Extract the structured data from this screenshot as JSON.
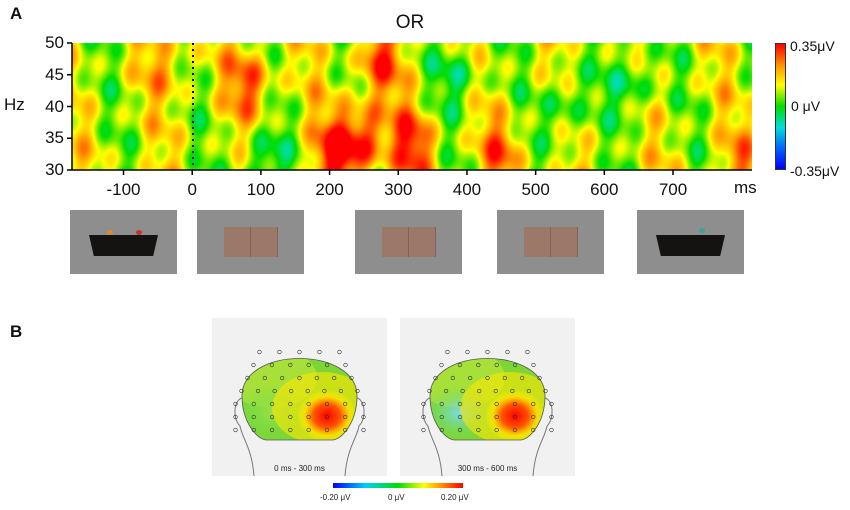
{
  "panels": {
    "a": "A",
    "b": "B"
  },
  "chart_data": [
    {
      "type": "heatmap",
      "title": "OR",
      "ylabel": "Hz",
      "xlabel": "ms",
      "xlim": [
        -175,
        815
      ],
      "ylim": [
        30,
        50
      ],
      "x_ticks": [
        "-100",
        "0",
        "100",
        "200",
        "300",
        "400",
        "500",
        "600",
        "700"
      ],
      "x_tick_values": [
        -100,
        0,
        100,
        200,
        300,
        400,
        500,
        600,
        700
      ],
      "y_ticks": [
        "30",
        "35",
        "40",
        "45",
        "50"
      ],
      "y_tick_values": [
        30,
        35,
        40,
        45,
        50
      ],
      "stimulus_onset_ms": 0,
      "colorbar": {
        "min": -0.35,
        "max": 0.35,
        "labels": [
          "0.35μV",
          "0 μV",
          "-0.35μV"
        ]
      },
      "hotspots": [
        {
          "x": 250,
          "y": 35,
          "value": 0.34
        },
        {
          "x": 210,
          "y": 33,
          "value": 0.33
        },
        {
          "x": 320,
          "y": 34,
          "value": 0.3
        },
        {
          "x": 85,
          "y": 44,
          "value": 0.28
        },
        {
          "x": 270,
          "y": 47,
          "value": 0.28
        },
        {
          "x": 450,
          "y": 33,
          "value": 0.24
        },
        {
          "x": -35,
          "y": 47,
          "value": 0.2
        },
        {
          "x": 800,
          "y": 31,
          "value": 0.2
        },
        {
          "x": 100,
          "y": 31,
          "value": -0.05
        },
        {
          "x": 640,
          "y": 44,
          "value": -0.05
        },
        {
          "x": 540,
          "y": 40,
          "value": -0.04
        },
        {
          "x": 390,
          "y": 45,
          "value": -0.03
        }
      ]
    },
    {
      "type": "heatmap",
      "subtype": "topographic",
      "maps": [
        {
          "window": "0 ms - 300 ms",
          "peak": {
            "region": "right-posterior",
            "value": 0.2
          },
          "low": {
            "region": "left",
            "value": 0.0
          }
        },
        {
          "window": "300 ms - 600 ms",
          "peak": {
            "region": "right-posterior",
            "value": 0.2
          },
          "low": {
            "region": "left",
            "value": -0.1
          }
        }
      ],
      "colorbar": {
        "min": -0.2,
        "max": 0.2,
        "labels": [
          "-0.20 μV",
          "0 μV",
          "0.20 μV"
        ]
      }
    }
  ],
  "stimuli": [
    {
      "kind": "tray-with-toys"
    },
    {
      "kind": "occluder"
    },
    {
      "kind": "occluder"
    },
    {
      "kind": "occluder"
    },
    {
      "kind": "tray-with-toy"
    }
  ],
  "colors": {
    "high": "#ff0000",
    "mid": "#00dd00",
    "low": "#0000ff",
    "occluder": "#9b7868",
    "stimulus_bg": "#8e8e8e"
  }
}
